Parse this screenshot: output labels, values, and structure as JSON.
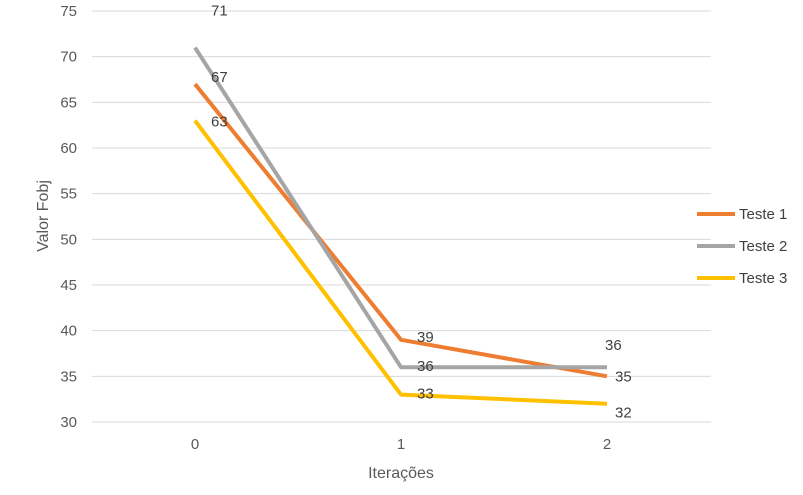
{
  "chart_data": {
    "type": "line",
    "xlabel": "Iterações",
    "ylabel": "Valor Fobj",
    "categories": [
      "0",
      "1",
      "2"
    ],
    "ylim": [
      30,
      75
    ],
    "yticks": [
      30,
      35,
      40,
      45,
      50,
      55,
      60,
      65,
      70,
      75
    ],
    "grid": true,
    "legend_position": "right",
    "series": [
      {
        "name": "Teste 1",
        "color": "#ED7D31",
        "values": [
          67,
          39,
          35
        ]
      },
      {
        "name": "Teste 2",
        "color": "#A5A5A5",
        "values": [
          71,
          36,
          36
        ]
      },
      {
        "name": "Teste 3",
        "color": "#FFC000",
        "values": [
          63,
          33,
          32
        ]
      }
    ]
  }
}
